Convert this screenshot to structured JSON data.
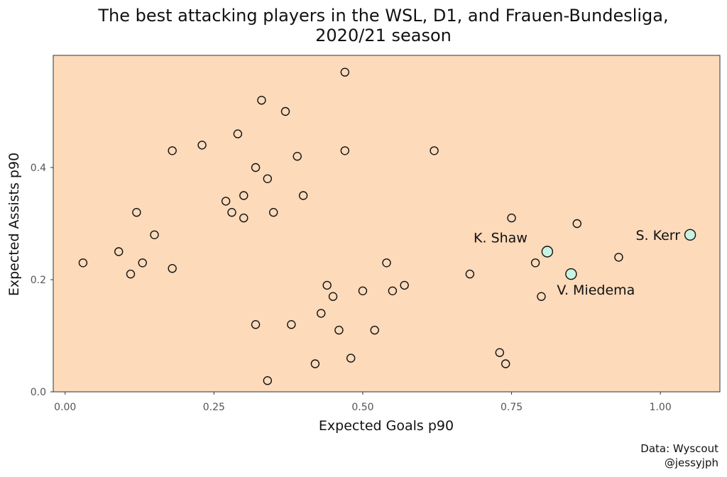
{
  "chart_data": {
    "type": "scatter",
    "title": "The best attacking players in the WSL, D1, and Frauen-Bundesliga,",
    "subtitle": "2020/21 season",
    "xlabel": "Expected Goals p90",
    "ylabel": "Expected Assists p90",
    "xlim": [
      -0.02,
      1.1
    ],
    "ylim": [
      0.0,
      0.6
    ],
    "x_ticks": [
      "0.00",
      "0.25",
      "0.50",
      "0.75",
      "1.00"
    ],
    "y_ticks": [
      "0.0",
      "0.2",
      "0.4"
    ],
    "grid": false,
    "panel_color": "#FCDABA",
    "point_fill": "#FCDABA",
    "highlight_fill": "#C9F2E0",
    "points": [
      {
        "x": 0.03,
        "y": 0.23
      },
      {
        "x": 0.09,
        "y": 0.25
      },
      {
        "x": 0.11,
        "y": 0.21
      },
      {
        "x": 0.12,
        "y": 0.32
      },
      {
        "x": 0.13,
        "y": 0.23
      },
      {
        "x": 0.15,
        "y": 0.28
      },
      {
        "x": 0.18,
        "y": 0.43
      },
      {
        "x": 0.18,
        "y": 0.22
      },
      {
        "x": 0.23,
        "y": 0.44
      },
      {
        "x": 0.27,
        "y": 0.34
      },
      {
        "x": 0.28,
        "y": 0.32
      },
      {
        "x": 0.29,
        "y": 0.46
      },
      {
        "x": 0.3,
        "y": 0.35
      },
      {
        "x": 0.3,
        "y": 0.31
      },
      {
        "x": 0.32,
        "y": 0.4
      },
      {
        "x": 0.32,
        "y": 0.12
      },
      {
        "x": 0.33,
        "y": 0.52
      },
      {
        "x": 0.34,
        "y": 0.38
      },
      {
        "x": 0.34,
        "y": 0.02
      },
      {
        "x": 0.35,
        "y": 0.32
      },
      {
        "x": 0.37,
        "y": 0.5
      },
      {
        "x": 0.38,
        "y": 0.12
      },
      {
        "x": 0.39,
        "y": 0.42
      },
      {
        "x": 0.4,
        "y": 0.35
      },
      {
        "x": 0.42,
        "y": 0.05
      },
      {
        "x": 0.43,
        "y": 0.14
      },
      {
        "x": 0.44,
        "y": 0.19
      },
      {
        "x": 0.45,
        "y": 0.17
      },
      {
        "x": 0.46,
        "y": 0.11
      },
      {
        "x": 0.47,
        "y": 0.57
      },
      {
        "x": 0.47,
        "y": 0.43
      },
      {
        "x": 0.48,
        "y": 0.06
      },
      {
        "x": 0.5,
        "y": 0.18
      },
      {
        "x": 0.52,
        "y": 0.11
      },
      {
        "x": 0.54,
        "y": 0.23
      },
      {
        "x": 0.55,
        "y": 0.18
      },
      {
        "x": 0.57,
        "y": 0.19
      },
      {
        "x": 0.62,
        "y": 0.43
      },
      {
        "x": 0.68,
        "y": 0.21
      },
      {
        "x": 0.73,
        "y": 0.07
      },
      {
        "x": 0.74,
        "y": 0.05
      },
      {
        "x": 0.75,
        "y": 0.31
      },
      {
        "x": 0.79,
        "y": 0.23
      },
      {
        "x": 0.8,
        "y": 0.17
      },
      {
        "x": 0.86,
        "y": 0.3
      },
      {
        "x": 0.93,
        "y": 0.24
      }
    ],
    "highlighted": [
      {
        "label": "K. Shaw",
        "x": 0.81,
        "y": 0.25,
        "label_pos": "upper-left"
      },
      {
        "label": "V. Miedema",
        "x": 0.85,
        "y": 0.21,
        "label_pos": "lower-right"
      },
      {
        "label": "S. Kerr",
        "x": 1.05,
        "y": 0.28,
        "label_pos": "left"
      }
    ],
    "caption": [
      "Data: Wyscout",
      "@jessyjph"
    ]
  }
}
